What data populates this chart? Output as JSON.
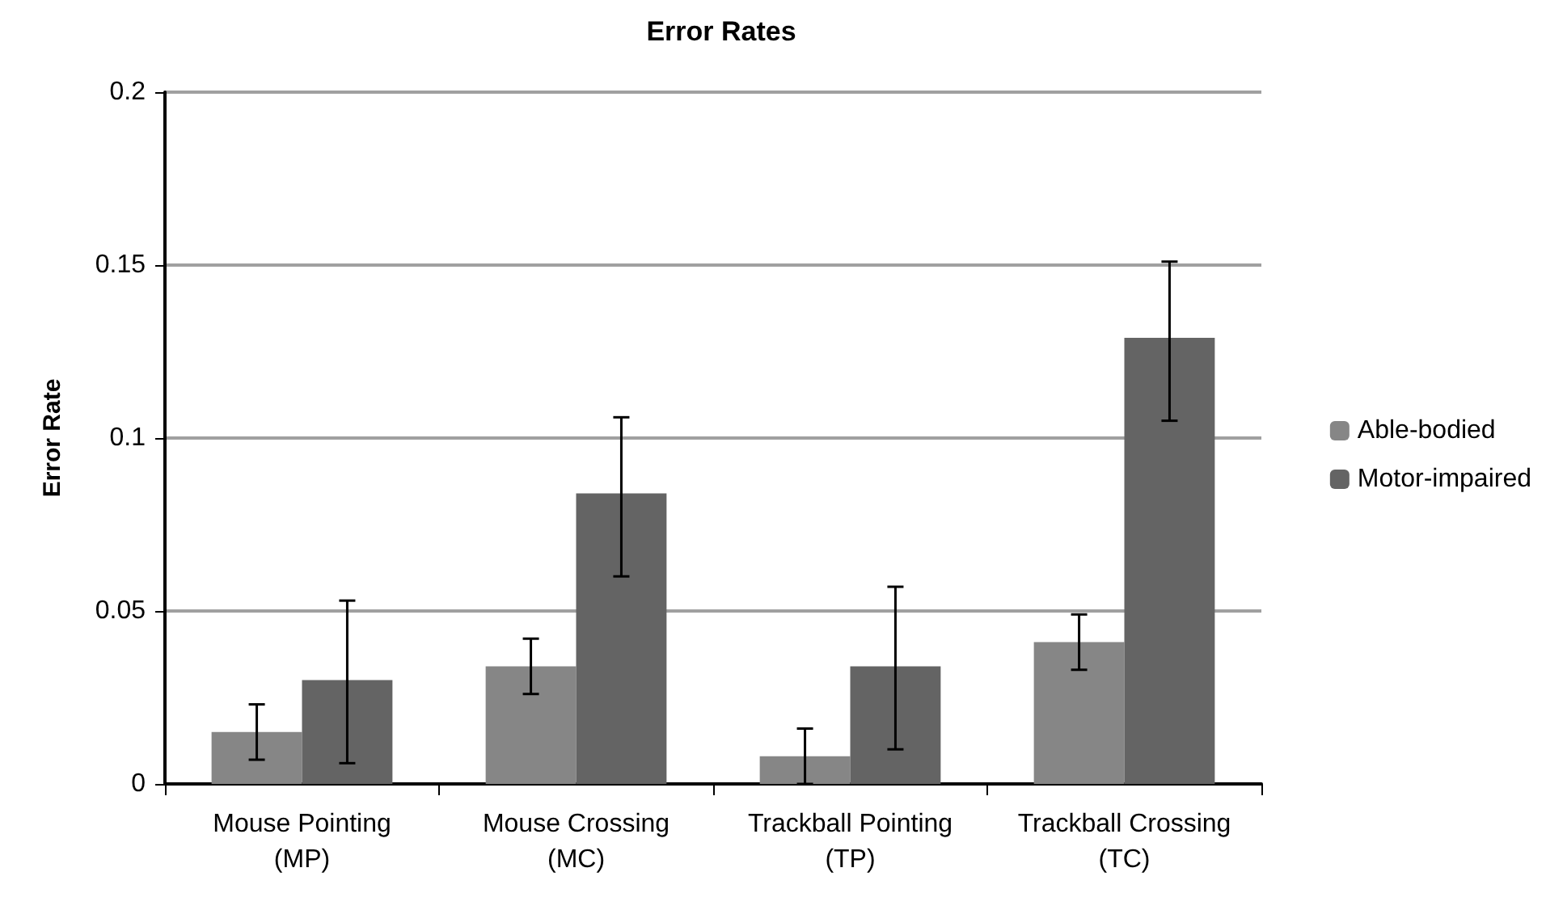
{
  "chart_data": {
    "type": "bar",
    "title": "Error Rates",
    "ylabel": "Error Rate",
    "categories": [
      "Mouse Pointing\n(MP)",
      "Mouse Crossing\n(MC)",
      "Trackball Pointing\n(TP)",
      "Trackball Crossing\n(TC)"
    ],
    "series": [
      {
        "name": "Able-bodied",
        "color": "#868686",
        "values": [
          0.015,
          0.034,
          0.008,
          0.041
        ],
        "errors": [
          [
            0.007,
            0.023
          ],
          [
            0.026,
            0.042
          ],
          [
            0.0,
            0.016
          ],
          [
            0.033,
            0.049
          ]
        ]
      },
      {
        "name": "Motor-impaired",
        "color": "#646464",
        "values": [
          0.03,
          0.084,
          0.034,
          0.129
        ],
        "errors": [
          [
            0.006,
            0.053
          ],
          [
            0.06,
            0.106
          ],
          [
            0.01,
            0.057
          ],
          [
            0.105,
            0.151
          ]
        ]
      }
    ],
    "ylim": [
      0,
      0.2
    ],
    "yticks": [
      0,
      0.05,
      0.1,
      0.15,
      0.2
    ],
    "grid": "y",
    "legend": "right"
  }
}
